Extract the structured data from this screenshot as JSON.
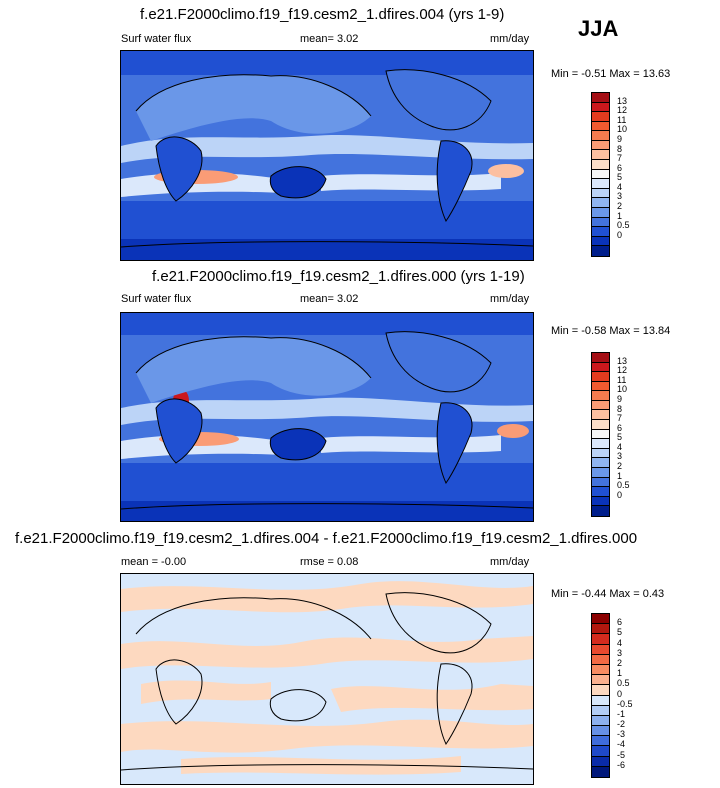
{
  "season": "JJA",
  "panels": [
    {
      "title": "f.e21.F2000climo.f19_f19.cesm2_1.dfires.004 (yrs 1-9)",
      "variable": "Surf water flux",
      "mean_text": "mean=   3.02",
      "units": "mm/day",
      "minmax_text": "Min =  -0.51 Max =  13.63",
      "colorbar": {
        "labels": [
          "13",
          "12",
          "11",
          "10",
          "9",
          "8",
          "7",
          "6",
          "5",
          "4",
          "3",
          "2",
          "1",
          "0.5",
          "0"
        ],
        "colors": [
          "#a50f15",
          "#cb181d",
          "#e33b1f",
          "#f05a30",
          "#f57b4f",
          "#fa9c76",
          "#fcbfa0",
          "#fddfc9",
          "#f7f7f7",
          "#dbe8fb",
          "#bcd4f7",
          "#90b5f0",
          "#6a97e8",
          "#4373dd",
          "#2050d2",
          "#0a33b8",
          "#001e8c"
        ]
      }
    },
    {
      "title": "f.e21.F2000climo.f19_f19.cesm2_1.dfires.000 (yrs 1-19)",
      "variable": "Surf water flux",
      "mean_text": "mean=   3.02",
      "units": "mm/day",
      "minmax_text": "Min =  -0.58 Max =  13.84",
      "colorbar": {
        "labels": [
          "13",
          "12",
          "11",
          "10",
          "9",
          "8",
          "7",
          "6",
          "5",
          "4",
          "3",
          "2",
          "1",
          "0.5",
          "0"
        ],
        "colors": [
          "#a50f15",
          "#cb181d",
          "#e33b1f",
          "#f05a30",
          "#f57b4f",
          "#fa9c76",
          "#fcbfa0",
          "#fddfc9",
          "#f7f7f7",
          "#dbe8fb",
          "#bcd4f7",
          "#90b5f0",
          "#6a97e8",
          "#4373dd",
          "#2050d2",
          "#0a33b8",
          "#001e8c"
        ]
      }
    },
    {
      "title": "f.e21.F2000climo.f19_f19.cesm2_1.dfires.004 - f.e21.F2000climo.f19_f19.cesm2_1.dfires.000",
      "mean_text": "mean =  -0.00",
      "rmse_text": "rmse =   0.08",
      "units": "mm/day",
      "minmax_text": "Min =  -0.44 Max =   0.43",
      "colorbar": {
        "labels": [
          "6",
          "5",
          "4",
          "3",
          "2",
          "1",
          "0.5",
          "0",
          "-0.5",
          "-1",
          "-2",
          "-3",
          "-4",
          "-5",
          "-6"
        ],
        "colors": [
          "#8b0000",
          "#b2180f",
          "#d42b1e",
          "#e8492e",
          "#f26a44",
          "#f78c62",
          "#fbb18f",
          "#fdd9c0",
          "#d8e8fb",
          "#b2cdf6",
          "#8cb0ef",
          "#6690e6",
          "#3f6cdb",
          "#1f49c9",
          "#0a2ba8",
          "#00177a"
        ]
      }
    }
  ]
}
